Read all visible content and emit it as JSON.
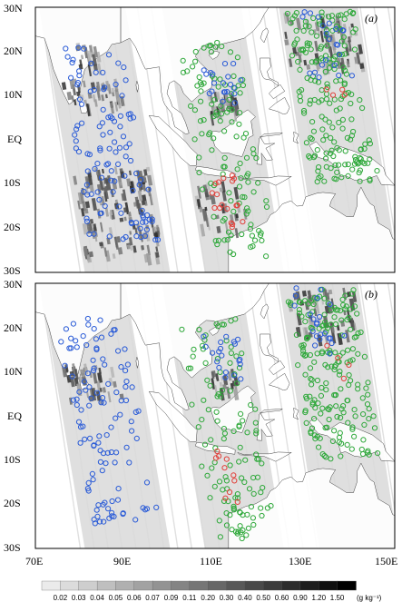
{
  "figure": {
    "panels": [
      {
        "label": "(a)",
        "heavy_cloud": true
      },
      {
        "label": "(b)",
        "heavy_cloud": false
      }
    ],
    "lat_ticks": [
      "30N",
      "20N",
      "10N",
      "EQ",
      "10S",
      "20S",
      "30S"
    ],
    "lon_ticks": [
      "70E",
      "90E",
      "110E",
      "130E",
      "150E"
    ],
    "lon_range": [
      70,
      150
    ],
    "lat_range": [
      -30,
      30
    ]
  },
  "legend": {
    "values": [
      "0.02",
      "0.03",
      "0.04",
      "0.05",
      "0.06",
      "0.07",
      "0.09",
      "0.11",
      "0.20",
      "0.30",
      "0.40",
      "0.50",
      "0.60",
      "0.90",
      "1.20",
      "1.50"
    ],
    "unit": "(g kg⁻¹)"
  },
  "colors": {
    "blue": "#2a5bd7",
    "green": "#2ea83a",
    "red": "#e0403a",
    "swath_light": "#d9d9d9",
    "land": "#ffffff",
    "ocean": "#ffffff"
  }
}
